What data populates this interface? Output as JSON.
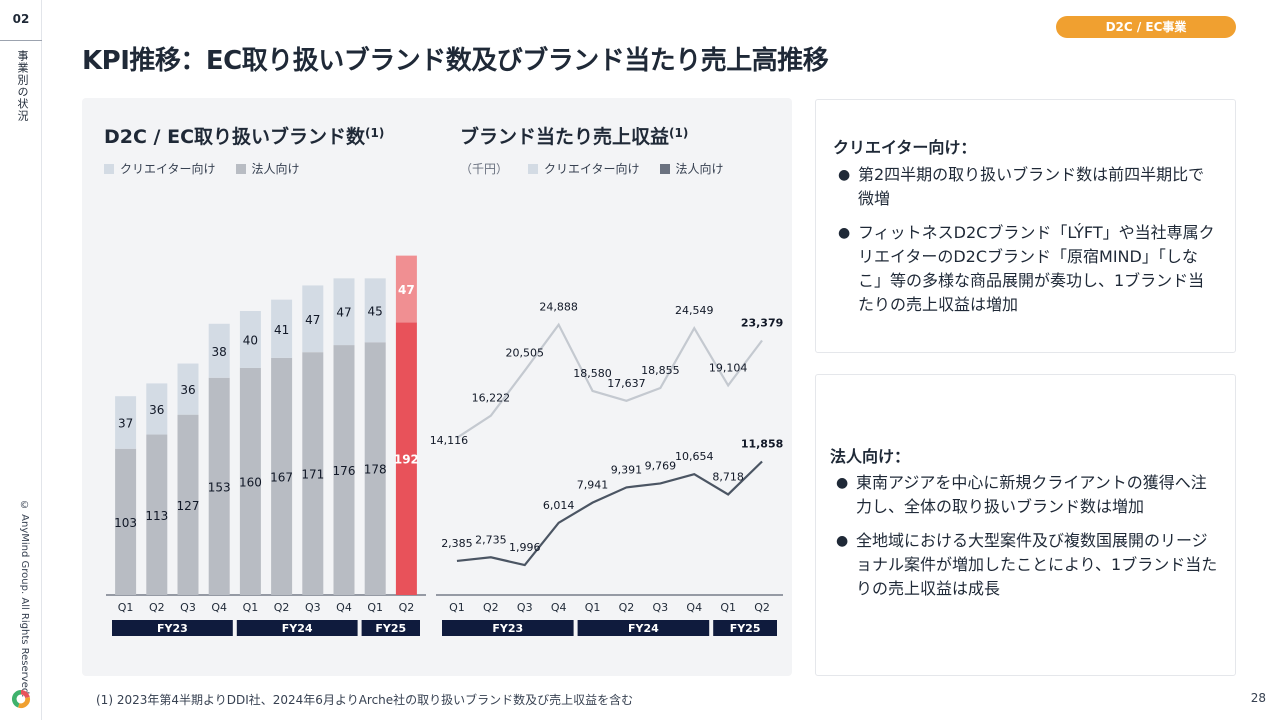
{
  "sidebar": {
    "page_number": "02",
    "section_label": "事業別の状況",
    "copyright": "© AnyMind Group. All Rights Reserved."
  },
  "header": {
    "tag": "D2C / EC事業",
    "title": "KPI推移：EC取り扱いブランド数及びブランド当たり売上高推移"
  },
  "left_chart": {
    "title": "D2C / EC取り扱いブランド数",
    "title_note": "(1)",
    "legend": {
      "creator": "クリエイター向け",
      "corporate": "法人向け"
    }
  },
  "right_chart": {
    "title": "ブランド当たり売上収益",
    "title_note": "(1)",
    "unit": "（千円）",
    "legend": {
      "creator": "クリエイター向け",
      "corporate": "法人向け"
    }
  },
  "chart_data": [
    {
      "type": "bar",
      "stacked": true,
      "categories": [
        "Q1",
        "Q2",
        "Q3",
        "Q4",
        "Q1",
        "Q2",
        "Q3",
        "Q4",
        "Q1",
        "Q2"
      ],
      "groups": [
        {
          "label": "FY23",
          "count": 4
        },
        {
          "label": "FY24",
          "count": 4
        },
        {
          "label": "FY25",
          "count": 2
        }
      ],
      "series": [
        {
          "name": "法人向け",
          "values": [
            103,
            113,
            127,
            153,
            160,
            167,
            171,
            176,
            178,
            192
          ]
        },
        {
          "name": "クリエイター向け",
          "values": [
            37,
            36,
            36,
            38,
            40,
            41,
            47,
            47,
            45,
            47
          ]
        }
      ],
      "highlight_last": true,
      "colors": {
        "corporate": "#b8bcc3",
        "creator": "#d3dbe4",
        "corporate_highlight": "#e8525a",
        "creator_highlight": "#f08f92"
      }
    },
    {
      "type": "line",
      "categories": [
        "Q1",
        "Q2",
        "Q3",
        "Q4",
        "Q1",
        "Q2",
        "Q3",
        "Q4",
        "Q1",
        "Q2"
      ],
      "groups": [
        {
          "label": "FY23",
          "count": 4
        },
        {
          "label": "FY24",
          "count": 4
        },
        {
          "label": "FY25",
          "count": 2
        }
      ],
      "series": [
        {
          "name": "クリエイター向け",
          "values": [
            14116,
            16222,
            20505,
            24888,
            18580,
            17637,
            18855,
            24549,
            19104,
            23379
          ],
          "labels": [
            "14,116",
            "16,222",
            "20,505",
            "24,888",
            "18,580",
            "17,637",
            "18,855",
            "24,549",
            "19,104",
            "23,379"
          ]
        },
        {
          "name": "法人向け",
          "values": [
            2385,
            2735,
            1996,
            6014,
            7941,
            9391,
            9769,
            10654,
            8718,
            11858
          ],
          "labels": [
            "2,385",
            "2,735",
            "1,996",
            "6,014",
            "7,941",
            "9,391",
            "9,769",
            "10,654",
            "8,718",
            "11,858"
          ]
        }
      ],
      "colors": {
        "creator": "#c4c9d0",
        "corporate": "#4b5563"
      }
    }
  ],
  "cards": [
    {
      "heading": "クリエイター向け：",
      "bullets": [
        "第2四半期の取り扱いブランド数は前四半期比で微増",
        "フィットネスD2Cブランド「LÝFT」や当社専属クリエイターのD2Cブランド「原宿MIND」「しなこ」等の多様な商品展開が奏功し、1ブランド当たりの売上収益は増加"
      ]
    },
    {
      "heading": "法人向け：",
      "bullets": [
        "東南アジアを中心に新規クライアントの獲得へ注力し、全体の取り扱いブランド数は増加",
        "全地域における大型案件及び複数国展開のリージョナル案件が増加したことにより、1ブランド当たりの売上収益は成長"
      ]
    }
  ],
  "footer": {
    "footnote": "(1) 2023年第4半期よりDDI社、2024年6月よりArche社の取り扱いブランド数及び売上収益を含む",
    "page": "28"
  },
  "theme": {
    "accent": "#f0a030",
    "fy_band": "#0f1b3d"
  }
}
